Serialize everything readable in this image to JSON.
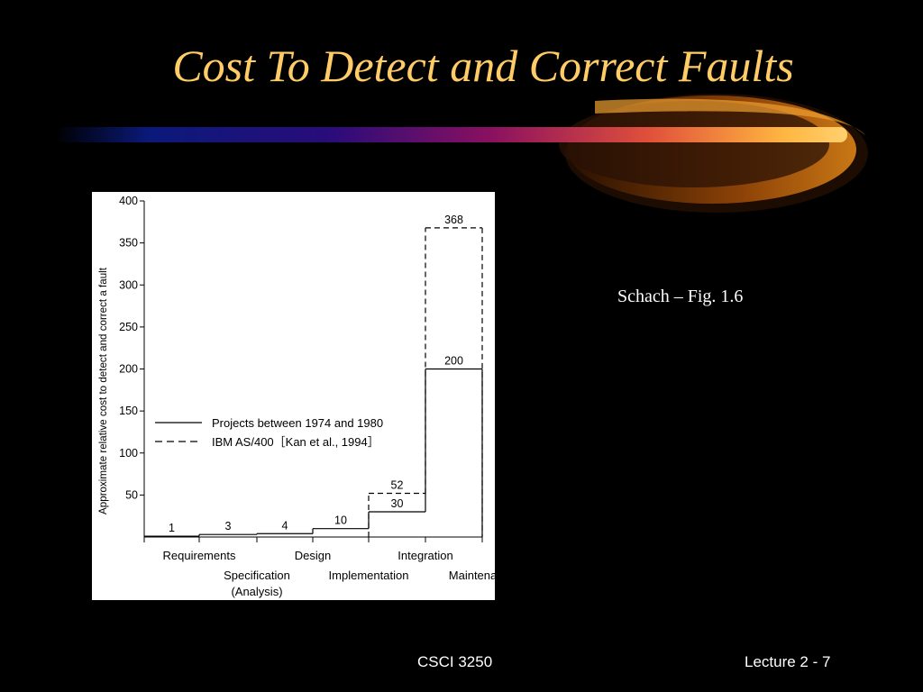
{
  "slide": {
    "title": "Cost To Detect and Correct Faults",
    "caption": "Schach – Fig. 1.6",
    "footer_left": "CSCI 3250",
    "footer_right": "Lecture 2 - 7",
    "accent_color": "#FFCC66"
  },
  "chart_data": {
    "type": "line",
    "subtype": "step",
    "ylabel": "Approximate relative cost to detect and correct a fault",
    "ylim": [
      0,
      400
    ],
    "yticks": [
      50,
      100,
      150,
      200,
      250,
      300,
      350,
      400
    ],
    "phases": [
      {
        "label": "Requirements",
        "row": 1
      },
      {
        "label": "Specification",
        "label2": "(Analysis)",
        "row": 2
      },
      {
        "label": "Design",
        "row": 1
      },
      {
        "label": "Implementation",
        "row": 2
      },
      {
        "label": "Integration",
        "row": 1
      },
      {
        "label": "Maintenance",
        "row": 2
      }
    ],
    "series": [
      {
        "name": "Projects between 1974 and 1980",
        "style": "solid",
        "values": [
          1,
          3,
          4,
          10,
          30,
          200
        ]
      },
      {
        "name": "IBM AS/400［Kan et al., 1994］",
        "style": "dashed",
        "values": [
          null,
          null,
          null,
          null,
          52,
          368
        ]
      }
    ],
    "legend_position": "center-left",
    "grid": false
  }
}
